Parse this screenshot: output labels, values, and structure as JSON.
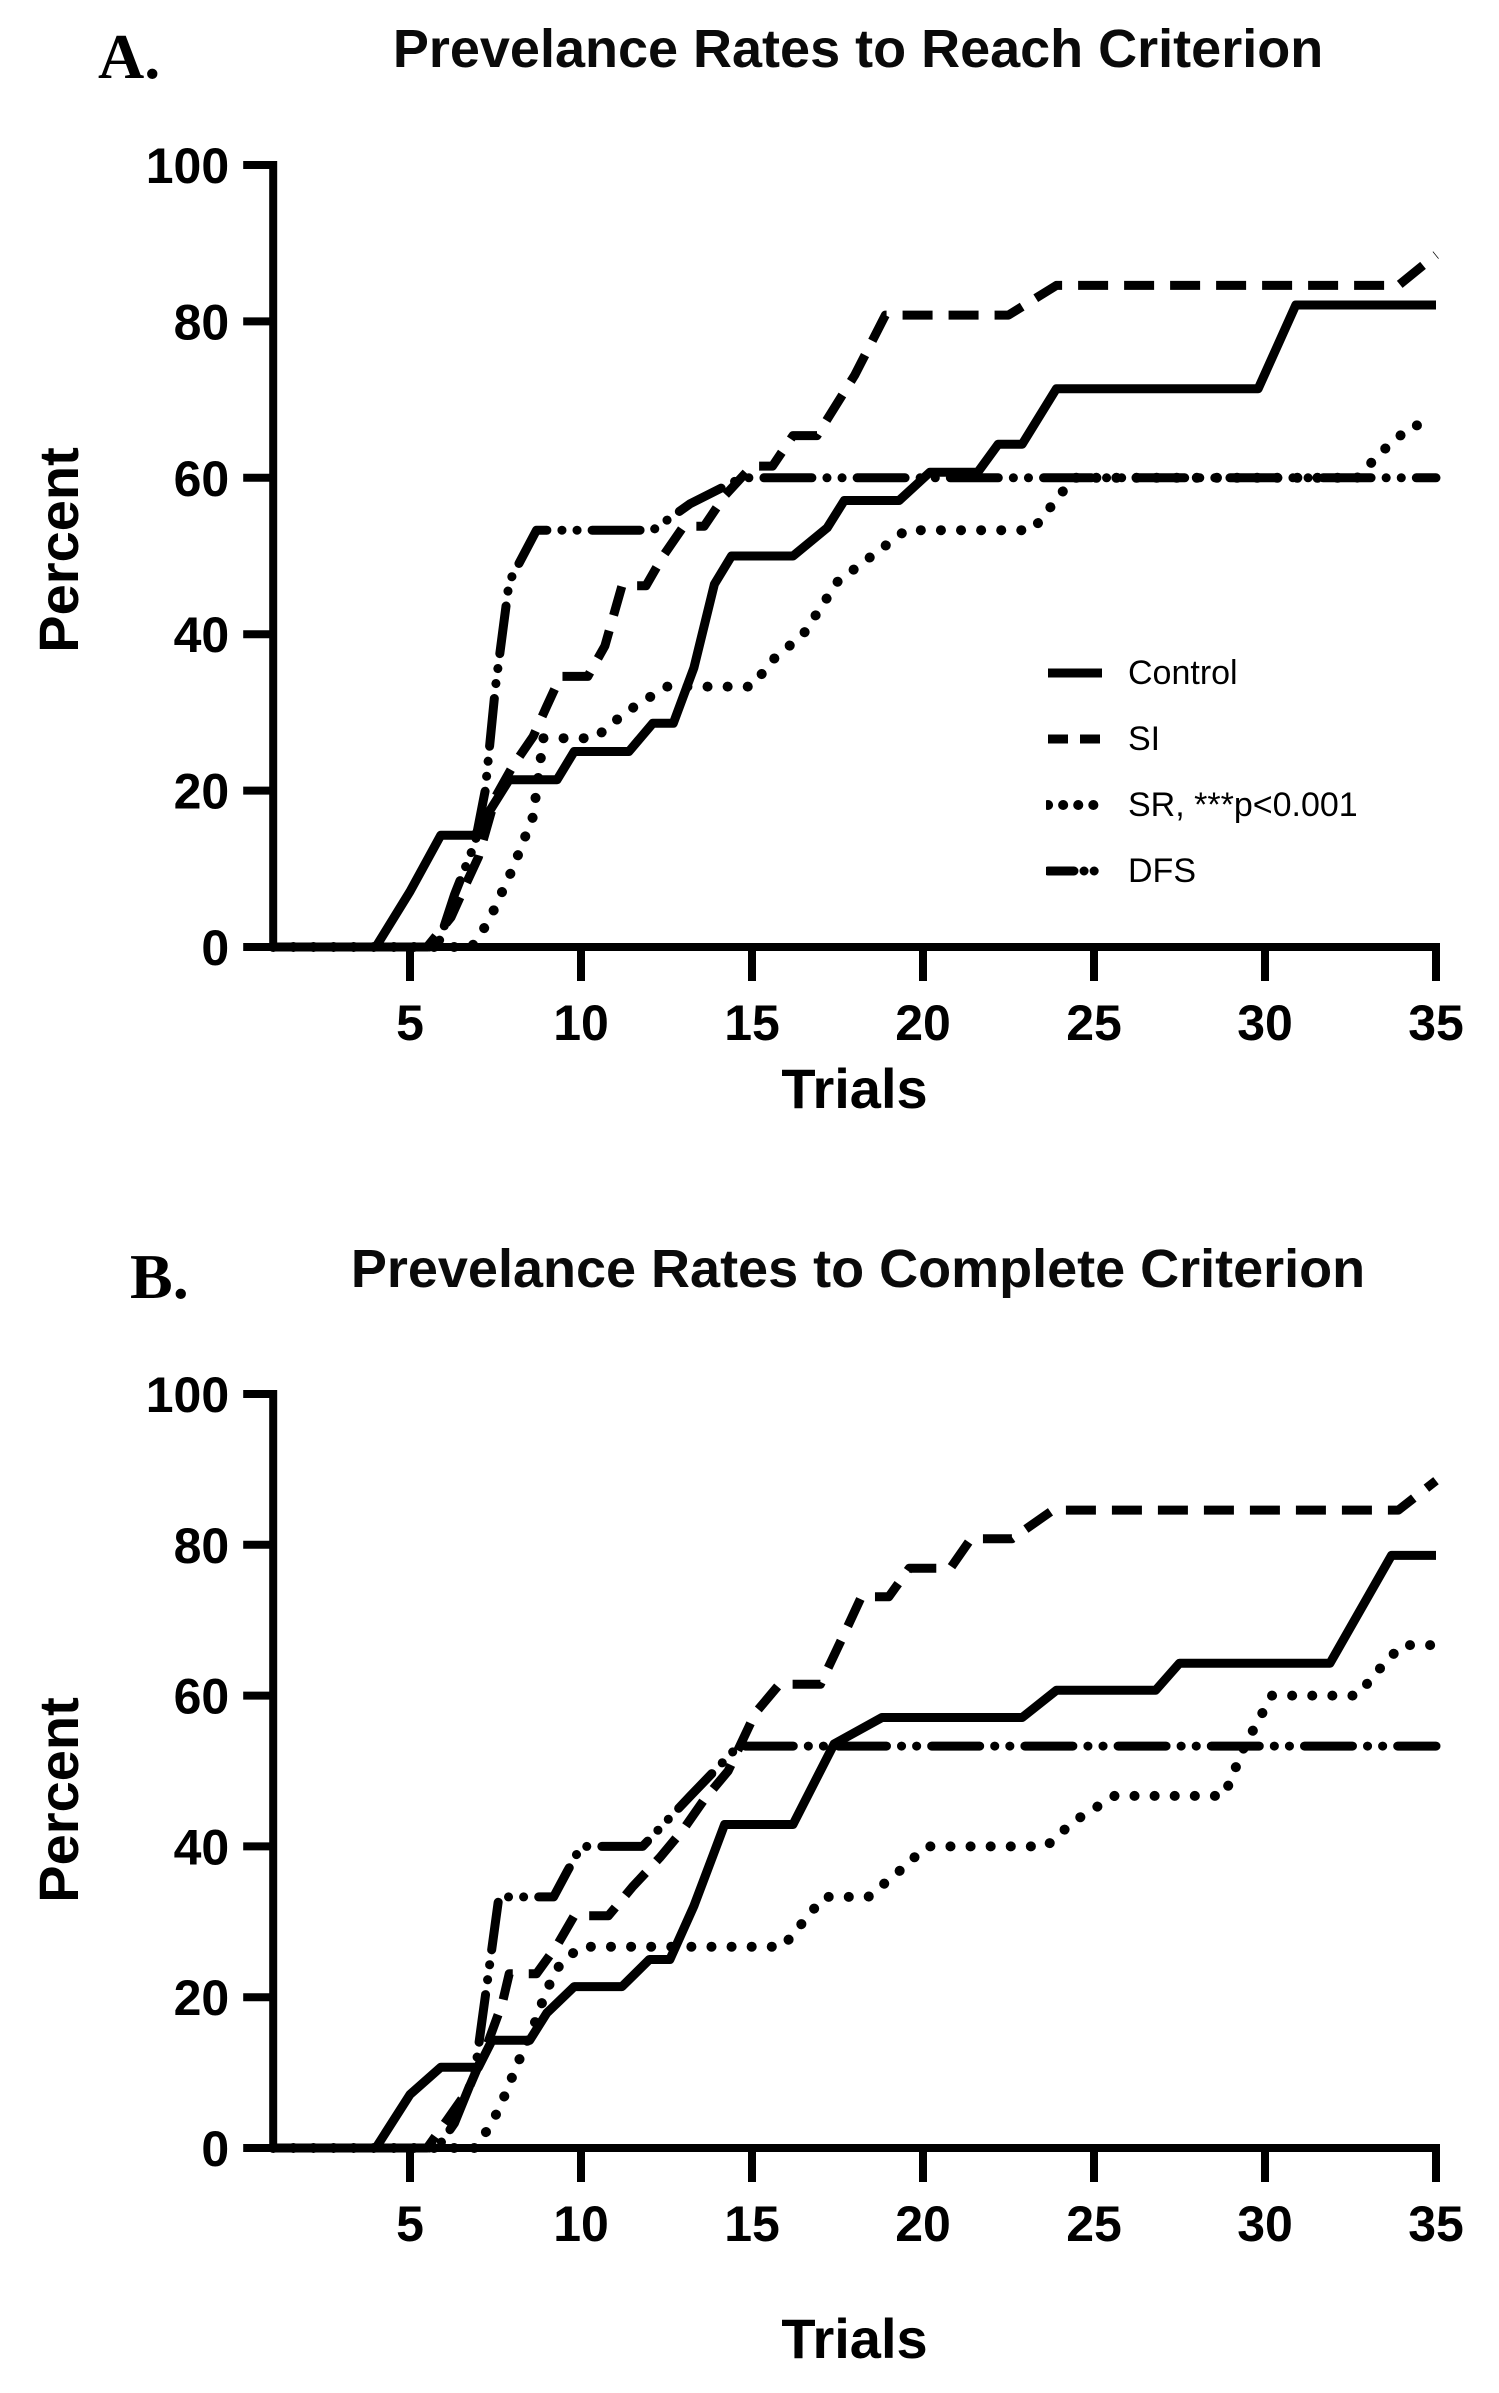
{
  "figure": {
    "background": "#ffffff",
    "ink_color": "#000000"
  },
  "chart_data": [
    {
      "type": "line",
      "panel_label": "A.",
      "title": "Prevelance Rates to Reach Criterion",
      "xlabel": "Trials",
      "ylabel": "Percent",
      "xlim": [
        1,
        35
      ],
      "ylim": [
        0,
        100
      ],
      "x_ticks": [
        5,
        10,
        15,
        20,
        25,
        30,
        35
      ],
      "y_ticks": [
        0,
        20,
        40,
        60,
        80,
        100
      ],
      "grid": false,
      "legend_position": "inside-right",
      "legend": [
        {
          "label": "Control",
          "style": "solid"
        },
        {
          "label": "SI",
          "style": "dashed"
        },
        {
          "label": "SR, ***p<0.001",
          "style": "dotted"
        },
        {
          "label": "DFS",
          "style": "dashdotdot"
        }
      ],
      "series": [
        {
          "name": "Control",
          "style": "solid",
          "points": [
            [
              1,
              0
            ],
            [
              4,
              0
            ],
            [
              5,
              7.1
            ],
            [
              5.9,
              14.3
            ],
            [
              6.9,
              14.3
            ],
            [
              7.4,
              17.9
            ],
            [
              7.9,
              21.4
            ],
            [
              9.3,
              21.4
            ],
            [
              9.8,
              25
            ],
            [
              11.4,
              25
            ],
            [
              12.1,
              28.6
            ],
            [
              12.7,
              28.6
            ],
            [
              13.3,
              35.7
            ],
            [
              13.9,
              46.4
            ],
            [
              14.4,
              50
            ],
            [
              16.2,
              50
            ],
            [
              17.2,
              53.6
            ],
            [
              17.7,
              57.1
            ],
            [
              19.3,
              57.1
            ],
            [
              20.2,
              60.7
            ],
            [
              21.6,
              60.7
            ],
            [
              22.2,
              64.3
            ],
            [
              22.9,
              64.3
            ],
            [
              23.9,
              71.4
            ],
            [
              29.8,
              71.4
            ],
            [
              30.9,
              82.1
            ],
            [
              35,
              82.1
            ]
          ]
        },
        {
          "name": "SI",
          "style": "dashed",
          "points": [
            [
              1,
              0
            ],
            [
              5.5,
              0
            ],
            [
              6.2,
              3.8
            ],
            [
              6.6,
              7.7
            ],
            [
              7,
              11.5
            ],
            [
              7.5,
              19.2
            ],
            [
              8,
              23.1
            ],
            [
              8.6,
              26.9
            ],
            [
              9,
              30.8
            ],
            [
              9.4,
              34.6
            ],
            [
              10.2,
              34.6
            ],
            [
              10.7,
              38.5
            ],
            [
              11.2,
              46.2
            ],
            [
              11.9,
              46.2
            ],
            [
              12.4,
              50
            ],
            [
              13,
              53.8
            ],
            [
              13.6,
              53.8
            ],
            [
              14.2,
              57.7
            ],
            [
              15,
              61.5
            ],
            [
              15.6,
              61.5
            ],
            [
              16.2,
              65.4
            ],
            [
              16.9,
              65.4
            ],
            [
              18,
              73.1
            ],
            [
              18.9,
              80.8
            ],
            [
              22.5,
              80.8
            ],
            [
              23.9,
              84.6
            ],
            [
              33.9,
              84.6
            ],
            [
              35,
              88.5
            ]
          ]
        },
        {
          "name": "SR",
          "style": "dotted",
          "points": [
            [
              1,
              0
            ],
            [
              6.8,
              0
            ],
            [
              7.3,
              3.3
            ],
            [
              8,
              10
            ],
            [
              8.6,
              16.7
            ],
            [
              8.9,
              26.7
            ],
            [
              10.4,
              26.7
            ],
            [
              11.3,
              30
            ],
            [
              12.5,
              33.3
            ],
            [
              15,
              33.3
            ],
            [
              15.6,
              36.7
            ],
            [
              16.5,
              40
            ],
            [
              17.5,
              46.7
            ],
            [
              18.5,
              50
            ],
            [
              19.5,
              53.3
            ],
            [
              23.2,
              53.3
            ],
            [
              24.4,
              60
            ],
            [
              32.7,
              60
            ],
            [
              33.4,
              63.3
            ],
            [
              34.3,
              66.7
            ],
            [
              35,
              66.7
            ]
          ]
        },
        {
          "name": "DFS",
          "style": "dashdotdot",
          "points": [
            [
              1,
              0
            ],
            [
              5.8,
              0
            ],
            [
              6.3,
              6.7
            ],
            [
              6.9,
              13.3
            ],
            [
              7.2,
              20
            ],
            [
              7.5,
              33.3
            ],
            [
              7.9,
              46.7
            ],
            [
              8.3,
              50
            ],
            [
              8.7,
              53.3
            ],
            [
              12.1,
              53.3
            ],
            [
              13.2,
              56.7
            ],
            [
              14.7,
              60
            ],
            [
              35,
              60
            ]
          ]
        }
      ]
    },
    {
      "type": "line",
      "panel_label": "B.",
      "title": "Prevelance Rates to Complete Criterion",
      "xlabel": "Trials",
      "ylabel": "Percent",
      "xlim": [
        1,
        35
      ],
      "ylim": [
        0,
        100
      ],
      "x_ticks": [
        5,
        10,
        15,
        20,
        25,
        30,
        35
      ],
      "y_ticks": [
        0,
        20,
        40,
        60,
        80,
        100
      ],
      "grid": false,
      "legend_position": "none",
      "legend": [],
      "series": [
        {
          "name": "Control",
          "style": "solid",
          "points": [
            [
              1,
              0
            ],
            [
              4,
              0
            ],
            [
              5,
              7.1
            ],
            [
              5.9,
              10.7
            ],
            [
              7,
              10.7
            ],
            [
              7.4,
              14.3
            ],
            [
              8.5,
              14.3
            ],
            [
              9,
              17.9
            ],
            [
              9.8,
              21.4
            ],
            [
              11.2,
              21.4
            ],
            [
              12,
              25
            ],
            [
              12.6,
              25
            ],
            [
              13.3,
              32.1
            ],
            [
              13.9,
              39.3
            ],
            [
              14.2,
              42.9
            ],
            [
              16.2,
              42.9
            ],
            [
              17.4,
              53.6
            ],
            [
              18.8,
              57.1
            ],
            [
              22.9,
              57.1
            ],
            [
              23.9,
              60.7
            ],
            [
              26.8,
              60.7
            ],
            [
              27.5,
              64.3
            ],
            [
              31.9,
              64.3
            ],
            [
              33.7,
              78.6
            ],
            [
              35,
              78.6
            ]
          ]
        },
        {
          "name": "SI",
          "style": "dashed",
          "points": [
            [
              1,
              0
            ],
            [
              5.5,
              0
            ],
            [
              6.1,
              3.8
            ],
            [
              6.7,
              7.7
            ],
            [
              7.2,
              13
            ],
            [
              7.7,
              19.2
            ],
            [
              7.9,
              23.1
            ],
            [
              8.7,
              23.1
            ],
            [
              9.3,
              26.9
            ],
            [
              9.8,
              30.8
            ],
            [
              10.8,
              30.8
            ],
            [
              11.5,
              34.6
            ],
            [
              12.3,
              38.5
            ],
            [
              13,
              42.3
            ],
            [
              13.6,
              46.2
            ],
            [
              14.3,
              50
            ],
            [
              15.1,
              57.7
            ],
            [
              15.8,
              61.5
            ],
            [
              17,
              61.5
            ],
            [
              17.8,
              69.2
            ],
            [
              18.2,
              73.1
            ],
            [
              19,
              73.1
            ],
            [
              19.6,
              76.9
            ],
            [
              20.8,
              76.9
            ],
            [
              21.4,
              80.8
            ],
            [
              22.6,
              80.8
            ],
            [
              23.8,
              84.6
            ],
            [
              33.9,
              84.6
            ],
            [
              35,
              88.5
            ]
          ]
        },
        {
          "name": "SR",
          "style": "dotted",
          "points": [
            [
              1,
              0
            ],
            [
              6.9,
              0
            ],
            [
              7.4,
              3.3
            ],
            [
              7.8,
              7.3
            ],
            [
              8.1,
              10.7
            ],
            [
              8.6,
              16
            ],
            [
              9,
              21
            ],
            [
              9.4,
              24.5
            ],
            [
              10,
              26.7
            ],
            [
              15.9,
              26.7
            ],
            [
              16.5,
              30
            ],
            [
              17.1,
              33.3
            ],
            [
              18.4,
              33.3
            ],
            [
              19.3,
              36.7
            ],
            [
              20.1,
              40
            ],
            [
              23.6,
              40
            ],
            [
              24.4,
              43.3
            ],
            [
              25.6,
              46.7
            ],
            [
              28.8,
              46.7
            ],
            [
              29.4,
              53.3
            ],
            [
              30.2,
              60
            ],
            [
              32.7,
              60
            ],
            [
              33.3,
              63.3
            ],
            [
              34,
              66.7
            ],
            [
              35,
              66.7
            ]
          ]
        },
        {
          "name": "DFS",
          "style": "dashdotdot",
          "points": [
            [
              1,
              0
            ],
            [
              5.8,
              0
            ],
            [
              6.3,
              3.3
            ],
            [
              6.9,
              10
            ],
            [
              7.1,
              16.7
            ],
            [
              7.6,
              33.3
            ],
            [
              9.2,
              33.3
            ],
            [
              9.6,
              36.7
            ],
            [
              10,
              40
            ],
            [
              11.8,
              40
            ],
            [
              13.2,
              46.7
            ],
            [
              14.6,
              53.3
            ],
            [
              35,
              53.3
            ]
          ]
        }
      ]
    }
  ]
}
